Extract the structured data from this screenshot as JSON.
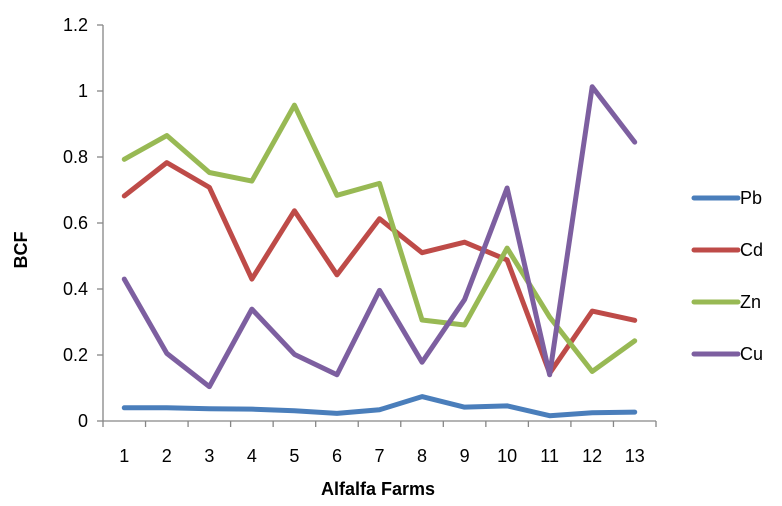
{
  "chart_data": {
    "type": "line",
    "xlabel": "Alfalfa Farms",
    "ylabel": "BCF",
    "categories": [
      "1",
      "2",
      "3",
      "4",
      "5",
      "6",
      "7",
      "8",
      "9",
      "10",
      "11",
      "12",
      "13"
    ],
    "ylim": [
      0,
      1.2
    ],
    "yticks": [
      0,
      0.2,
      0.4,
      0.6,
      0.8,
      1,
      1.2
    ],
    "grid": false,
    "legend_position": "right",
    "series": [
      {
        "name": "Pb",
        "color": "#4a7ebb",
        "values": [
          0.04,
          0.04,
          0.037,
          0.036,
          0.031,
          0.023,
          0.034,
          0.074,
          0.042,
          0.046,
          0.016,
          0.025,
          0.027
        ]
      },
      {
        "name": "Cd",
        "color": "#be4b48",
        "values": [
          0.682,
          0.783,
          0.708,
          0.43,
          0.637,
          0.443,
          0.613,
          0.51,
          0.542,
          0.488,
          0.145,
          0.333,
          0.305
        ]
      },
      {
        "name": "Zn",
        "color": "#98b954",
        "values": [
          0.793,
          0.865,
          0.753,
          0.727,
          0.957,
          0.684,
          0.72,
          0.306,
          0.291,
          0.524,
          0.315,
          0.15,
          0.243
        ]
      },
      {
        "name": "Cu",
        "color": "#7d5fa0",
        "values": [
          0.43,
          0.205,
          0.104,
          0.339,
          0.202,
          0.14,
          0.396,
          0.178,
          0.368,
          0.706,
          0.14,
          1.013,
          0.845
        ]
      }
    ]
  }
}
